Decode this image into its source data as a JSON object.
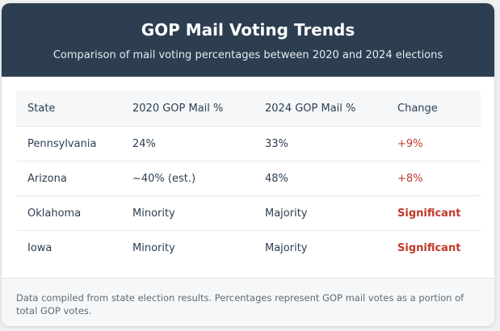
{
  "header": {
    "title": "GOP Mail Voting Trends",
    "subtitle": "Comparison of mail voting percentages between 2020 and 2024 elections"
  },
  "table": {
    "columns": [
      "State",
      "2020 GOP Mail %",
      "2024 GOP Mail %",
      "Change"
    ],
    "rows": [
      {
        "state": "Pennsylvania",
        "y2020": "24%",
        "y2024": "33%",
        "change": "+9%"
      },
      {
        "state": "Arizona",
        "y2020": "~40% (est.)",
        "y2024": "48%",
        "change": "+8%"
      },
      {
        "state": "Oklahoma",
        "y2020": "Minority",
        "y2024": "Majority",
        "change": "Significant"
      },
      {
        "state": "Iowa",
        "y2020": "Minority",
        "y2024": "Majority",
        "change": "Significant"
      }
    ]
  },
  "footer": {
    "note": "Data compiled from state election results. Percentages represent GOP mail votes as a portion of total GOP votes."
  },
  "colors": {
    "header_bg": "#2c3e50",
    "change_accent": "#c0392b"
  }
}
